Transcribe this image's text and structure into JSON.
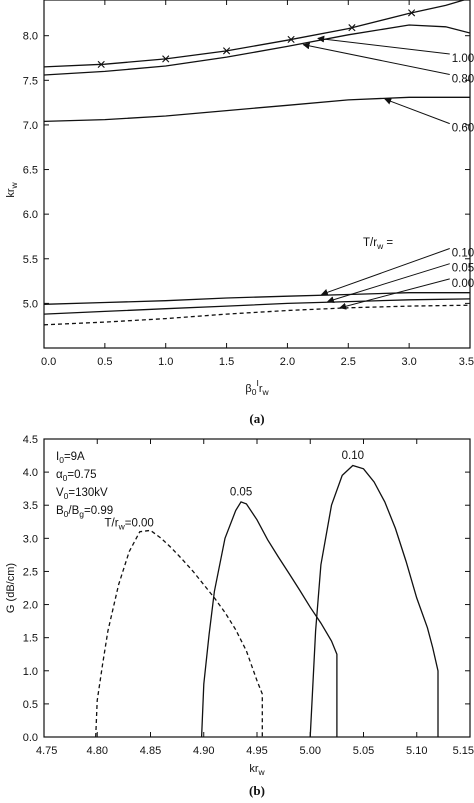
{
  "chart_data": [
    {
      "panel": "(a)",
      "type": "line",
      "xlabel_main": "β",
      "xlabel_sub": "0",
      "xlabel_sup": "I",
      "xlabel_tail": "r",
      "xlabel_tail_sub": "w",
      "ylabel_main": "kr",
      "ylabel_sub": "w",
      "xlim": [
        0.0,
        3.5
      ],
      "ylim": [
        4.5,
        8.4
      ],
      "xticks": [
        "0.0",
        "0.5",
        "1.0",
        "1.5",
        "2.0",
        "2.5",
        "3.0",
        "3.5"
      ],
      "yticks": [
        "5.0",
        "5.5",
        "6.0",
        "6.5",
        "7.0",
        "7.5",
        "8.0"
      ],
      "xtick_values": [
        0.0,
        0.5,
        1.0,
        1.5,
        2.0,
        2.5,
        3.0,
        3.5
      ],
      "ytick_values": [
        5.0,
        5.5,
        6.0,
        6.5,
        7.0,
        7.5,
        8.0
      ],
      "legend_title_main": "T/r",
      "legend_title_sub": "w",
      "legend_title_tail": " =",
      "series": [
        {
          "name": "1.00",
          "dash": false,
          "marker": "x",
          "x": [
            0.0,
            0.5,
            1.0,
            1.5,
            2.0,
            2.5,
            3.0,
            3.3,
            3.5
          ],
          "y": [
            7.65,
            7.68,
            7.74,
            7.83,
            7.95,
            8.08,
            8.25,
            8.34,
            8.42
          ],
          "marker_x": [
            0.47,
            1.0,
            1.5,
            2.03,
            2.53,
            3.02
          ]
        },
        {
          "name": "0.80",
          "dash": false,
          "x": [
            0.0,
            0.5,
            1.0,
            1.5,
            2.0,
            2.5,
            3.0,
            3.3,
            3.5
          ],
          "y": [
            7.56,
            7.6,
            7.66,
            7.76,
            7.88,
            8.01,
            8.12,
            8.1,
            8.03
          ]
        },
        {
          "name": "0.60",
          "dash": false,
          "x": [
            0.0,
            0.5,
            1.0,
            1.5,
            2.0,
            2.5,
            3.0,
            3.5
          ],
          "y": [
            7.04,
            7.06,
            7.1,
            7.16,
            7.22,
            7.28,
            7.31,
            7.31
          ]
        },
        {
          "name": "0.10",
          "dash": false,
          "x": [
            0.0,
            0.5,
            1.0,
            1.5,
            2.0,
            2.5,
            3.0,
            3.5
          ],
          "y": [
            4.99,
            5.01,
            5.03,
            5.06,
            5.08,
            5.1,
            5.12,
            5.12
          ]
        },
        {
          "name": "0.05",
          "dash": false,
          "x": [
            0.0,
            0.5,
            1.0,
            1.5,
            2.0,
            2.5,
            3.0,
            3.5
          ],
          "y": [
            4.88,
            4.91,
            4.94,
            4.97,
            5.0,
            5.02,
            5.04,
            5.05
          ]
        },
        {
          "name": "0.00",
          "dash": true,
          "x": [
            0.0,
            0.5,
            1.0,
            1.5,
            2.0,
            2.5,
            3.0,
            3.5
          ],
          "y": [
            4.76,
            4.79,
            4.83,
            4.88,
            4.92,
            4.95,
            4.97,
            4.98
          ]
        }
      ],
      "annotations": [
        {
          "text": "1.00",
          "tx": 3.35,
          "ty": 7.75,
          "ax": 2.25,
          "ay": 7.97
        },
        {
          "text": "0.80",
          "tx": 3.35,
          "ty": 7.52,
          "ax": 2.13,
          "ay": 7.9
        },
        {
          "text": "0.60",
          "tx": 3.35,
          "ty": 6.97,
          "ax": 2.8,
          "ay": 7.29
        },
        {
          "text": "0.10",
          "tx": 3.35,
          "ty": 5.57,
          "ax": 2.28,
          "ay": 5.1
        },
        {
          "text": "0.05",
          "tx": 3.35,
          "ty": 5.4,
          "ax": 2.33,
          "ay": 5.02
        },
        {
          "text": "0.00",
          "tx": 3.35,
          "ty": 5.23,
          "ax": 2.43,
          "ay": 4.95
        }
      ]
    },
    {
      "panel": "(b)",
      "type": "line",
      "xlabel_main": "kr",
      "xlabel_sub": "w",
      "ylabel": "G (dB/cm)",
      "xlim": [
        4.75,
        5.15
      ],
      "ylim": [
        0.0,
        4.5
      ],
      "xticks": [
        "4.75",
        "4.80",
        "4.85",
        "4.90",
        "4.95",
        "5.00",
        "5.05",
        "5.10",
        "5.15"
      ],
      "yticks": [
        "0.0",
        "0.5",
        "1.0",
        "1.5",
        "2.0",
        "2.5",
        "3.0",
        "3.5",
        "4.0",
        "4.5"
      ],
      "xtick_values": [
        4.75,
        4.8,
        4.85,
        4.9,
        4.95,
        5.0,
        5.05,
        5.1,
        5.15
      ],
      "ytick_values": [
        0.0,
        0.5,
        1.0,
        1.5,
        2.0,
        2.5,
        3.0,
        3.5,
        4.0,
        4.5
      ],
      "params": [
        {
          "main": "I",
          "sub": "0",
          "tail": "=9A"
        },
        {
          "main": "α",
          "sub": "0",
          "tail": "=0.75"
        },
        {
          "main": "V",
          "sub": "0",
          "tail": "=130kV"
        },
        {
          "main": "B",
          "sub": "0",
          "tail": "/B",
          "sub2": "g",
          "tail2": "=0.99"
        }
      ],
      "series": [
        {
          "name": "0.00",
          "label_main": "T/r",
          "label_sub": "w",
          "label_tail": "=0.00",
          "dash": true,
          "label_x": 4.83,
          "label_y": 3.18,
          "x": [
            4.7985,
            4.8,
            4.805,
            4.81,
            4.82,
            4.83,
            4.84,
            4.85,
            4.86,
            4.87,
            4.88,
            4.89,
            4.9,
            4.91,
            4.92,
            4.93,
            4.94,
            4.95,
            4.955,
            4.955
          ],
          "y": [
            0.0,
            0.55,
            1.1,
            1.6,
            2.3,
            2.8,
            3.1,
            3.12,
            3.0,
            2.85,
            2.68,
            2.5,
            2.3,
            2.1,
            1.88,
            1.62,
            1.3,
            0.85,
            0.65,
            0.0
          ]
        },
        {
          "name": "0.05",
          "label_main": "",
          "label_sub": "",
          "label_tail": "0.05",
          "dash": false,
          "label_x": 4.935,
          "label_y": 3.65,
          "x": [
            4.898,
            4.9,
            4.905,
            4.91,
            4.92,
            4.93,
            4.935,
            4.94,
            4.95,
            4.96,
            4.97,
            4.98,
            4.99,
            5.0,
            5.01,
            5.02,
            5.025,
            5.025
          ],
          "y": [
            0.0,
            0.8,
            1.55,
            2.2,
            3.0,
            3.42,
            3.55,
            3.52,
            3.28,
            2.98,
            2.72,
            2.47,
            2.22,
            1.96,
            1.72,
            1.45,
            1.25,
            0.0
          ]
        },
        {
          "name": "0.10",
          "label_main": "",
          "label_sub": "",
          "label_tail": "0.10",
          "dash": false,
          "label_x": 5.04,
          "label_y": 4.2,
          "x": [
            5.0,
            5.002,
            5.005,
            5.01,
            5.02,
            5.03,
            5.04,
            5.05,
            5.06,
            5.07,
            5.08,
            5.09,
            5.1,
            5.11,
            5.115,
            5.12,
            5.12
          ],
          "y": [
            0.0,
            0.65,
            1.6,
            2.6,
            3.5,
            3.95,
            4.1,
            4.05,
            3.85,
            3.55,
            3.15,
            2.65,
            2.1,
            1.65,
            1.35,
            1.0,
            0.0
          ]
        }
      ]
    }
  ]
}
